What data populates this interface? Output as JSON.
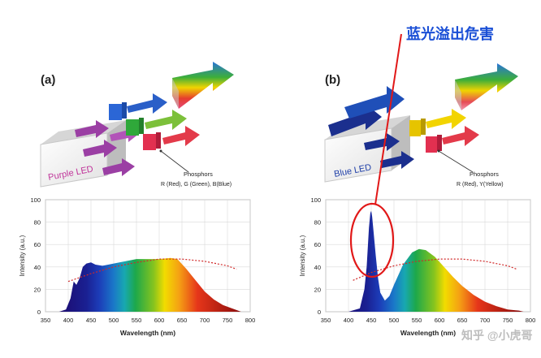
{
  "annotation": {
    "text": "蓝光溢出危害",
    "color": "#1a4fd6"
  },
  "watermark": {
    "text": "知乎 @小虎哥"
  },
  "panels": [
    {
      "label": "(a)",
      "led_label": "Purple LED",
      "phosphor_title": "Phosphors",
      "phosphor_desc": "R (Red), G (Green), B(Blue)",
      "led_text_color": "#c0359a"
    },
    {
      "label": "(b)",
      "led_label": "Blue LED",
      "phosphor_title": "Phosphors",
      "phosphor_desc": "R (Red), Y(Yellow)",
      "led_text_color": "#1f3fa8"
    }
  ],
  "chart_data": [
    {
      "type": "area",
      "xlabel": "Wavelength (nm)",
      "ylabel": "Intensity (a.u.)",
      "xlim": [
        350,
        800
      ],
      "ylim": [
        0,
        100
      ],
      "xticks": [
        350,
        400,
        450,
        500,
        550,
        600,
        650,
        700,
        750,
        800
      ],
      "yticks": [
        0,
        20,
        40,
        60,
        80,
        100
      ],
      "grid": true,
      "spectrum": {
        "x": [
          380,
          395,
          405,
          412,
          418,
          425,
          432,
          440,
          450,
          460,
          475,
          500,
          525,
          550,
          575,
          600,
          625,
          640,
          660,
          680,
          700,
          720,
          740,
          760,
          780
        ],
        "y": [
          0,
          2,
          12,
          27,
          24,
          30,
          40,
          43,
          44,
          42,
          41,
          43,
          45,
          47,
          47,
          47,
          48,
          47,
          38,
          28,
          18,
          11,
          6,
          3,
          0
        ]
      },
      "reference_curve": {
        "x": [
          400,
          450,
          500,
          550,
          600,
          650,
          700,
          750,
          770
        ],
        "y": [
          27,
          34,
          40,
          44,
          47,
          47,
          45,
          41,
          38
        ]
      }
    },
    {
      "type": "area",
      "xlabel": "Wavelength (nm)",
      "ylabel": "Intensity (a.u.)",
      "xlim": [
        350,
        800
      ],
      "ylim": [
        0,
        100
      ],
      "xticks": [
        350,
        400,
        450,
        500,
        550,
        600,
        650,
        700,
        750,
        800
      ],
      "yticks": [
        0,
        20,
        40,
        60,
        80,
        100
      ],
      "grid": true,
      "spectrum": {
        "x": [
          400,
          425,
          435,
          440,
          445,
          448,
          450,
          452,
          455,
          460,
          465,
          470,
          480,
          490,
          500,
          520,
          540,
          555,
          570,
          590,
          610,
          630,
          650,
          675,
          700,
          725,
          750,
          775,
          785
        ],
        "y": [
          0,
          3,
          20,
          40,
          75,
          88,
          90,
          85,
          72,
          50,
          30,
          17,
          10,
          14,
          24,
          42,
          53,
          56,
          55,
          49,
          40,
          31,
          23,
          15,
          9,
          5,
          2,
          1,
          0
        ]
      },
      "reference_curve": {
        "x": [
          410,
          450,
          500,
          550,
          600,
          650,
          700,
          750,
          770
        ],
        "y": [
          28,
          35,
          41,
          45,
          47,
          47,
          45,
          41,
          38
        ]
      }
    }
  ]
}
